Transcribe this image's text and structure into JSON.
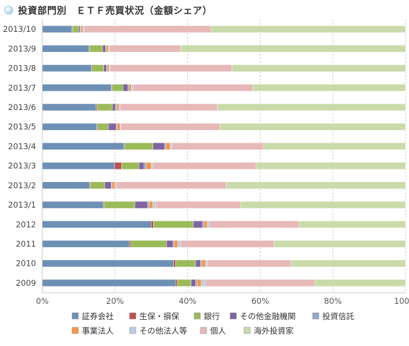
{
  "chart_data": {
    "type": "bar",
    "orientation": "horizontal",
    "stacked": "percent",
    "title": "投資部門別　ＥＴＦ売買状況（金額シェア）",
    "categories": [
      "2013/10",
      "2013/9",
      "2013/8",
      "2013/7",
      "2013/6",
      "2013/5",
      "2013/4",
      "2013/3",
      "2013/2",
      "2013/1",
      "2012",
      "2011",
      "2010",
      "2009"
    ],
    "xlim": [
      0,
      100
    ],
    "xticks": [
      "0%",
      "20%",
      "40%",
      "60%",
      "80%",
      "100%"
    ],
    "grid": "vertical",
    "legend_position": "bottom",
    "series": [
      {
        "name": "証券会社",
        "color": "#6e90b4",
        "values": [
          8.2,
          12.8,
          13.5,
          19.0,
          14.8,
          15.0,
          22.5,
          20.0,
          13.0,
          16.8,
          30.0,
          24.0,
          36.2,
          36.7
        ]
      },
      {
        "name": "生保・損保",
        "color": "#c0504d",
        "values": [
          0.2,
          0.2,
          0.2,
          0.2,
          0.3,
          0.2,
          0.2,
          1.8,
          0.2,
          0.2,
          0.6,
          0.4,
          0.5,
          0.5
        ]
      },
      {
        "name": "銀行",
        "color": "#9bbb59",
        "values": [
          1.6,
          3.6,
          3.2,
          3.0,
          4.2,
          3.0,
          7.8,
          4.8,
          4.0,
          8.5,
          11.0,
          9.8,
          5.5,
          3.8
        ]
      },
      {
        "name": "その他金融機関",
        "color": "#8064a2",
        "values": [
          0.4,
          0.8,
          0.8,
          1.4,
          0.8,
          2.2,
          3.2,
          1.4,
          1.8,
          3.5,
          2.5,
          1.8,
          1.4,
          1.2
        ]
      },
      {
        "name": "投資信託",
        "color": "#92a9c2",
        "values": [
          0.2,
          0.2,
          0.2,
          0.3,
          0.4,
          0.2,
          0.3,
          0.6,
          0.2,
          0.4,
          0.4,
          0.3,
          0.3,
          0.4
        ]
      },
      {
        "name": "事業法人",
        "color": "#f79646",
        "values": [
          0.5,
          0.6,
          0.5,
          0.6,
          0.6,
          0.8,
          1.2,
          1.4,
          0.8,
          1.0,
          0.9,
          1.0,
          1.0,
          1.2
        ]
      },
      {
        "name": "その他法人等",
        "color": "#b8cde4",
        "values": [
          0.4,
          0.3,
          0.3,
          0.5,
          0.4,
          0.3,
          0.5,
          0.5,
          0.4,
          0.8,
          0.6,
          0.8,
          0.6,
          1.0
        ]
      },
      {
        "name": "個人",
        "color": "#e6b9b8",
        "values": [
          34.9,
          19.5,
          33.5,
          33.0,
          26.7,
          27.2,
          25.3,
          28.3,
          30.2,
          23.4,
          24.7,
          25.7,
          23.0,
          30.2
        ]
      },
      {
        "name": "海外投資家",
        "color": "#c9dbaa",
        "values": [
          53.6,
          62.0,
          47.8,
          42.0,
          51.8,
          51.1,
          39.0,
          41.2,
          49.4,
          45.4,
          29.3,
          36.2,
          31.5,
          25.0
        ]
      }
    ]
  }
}
